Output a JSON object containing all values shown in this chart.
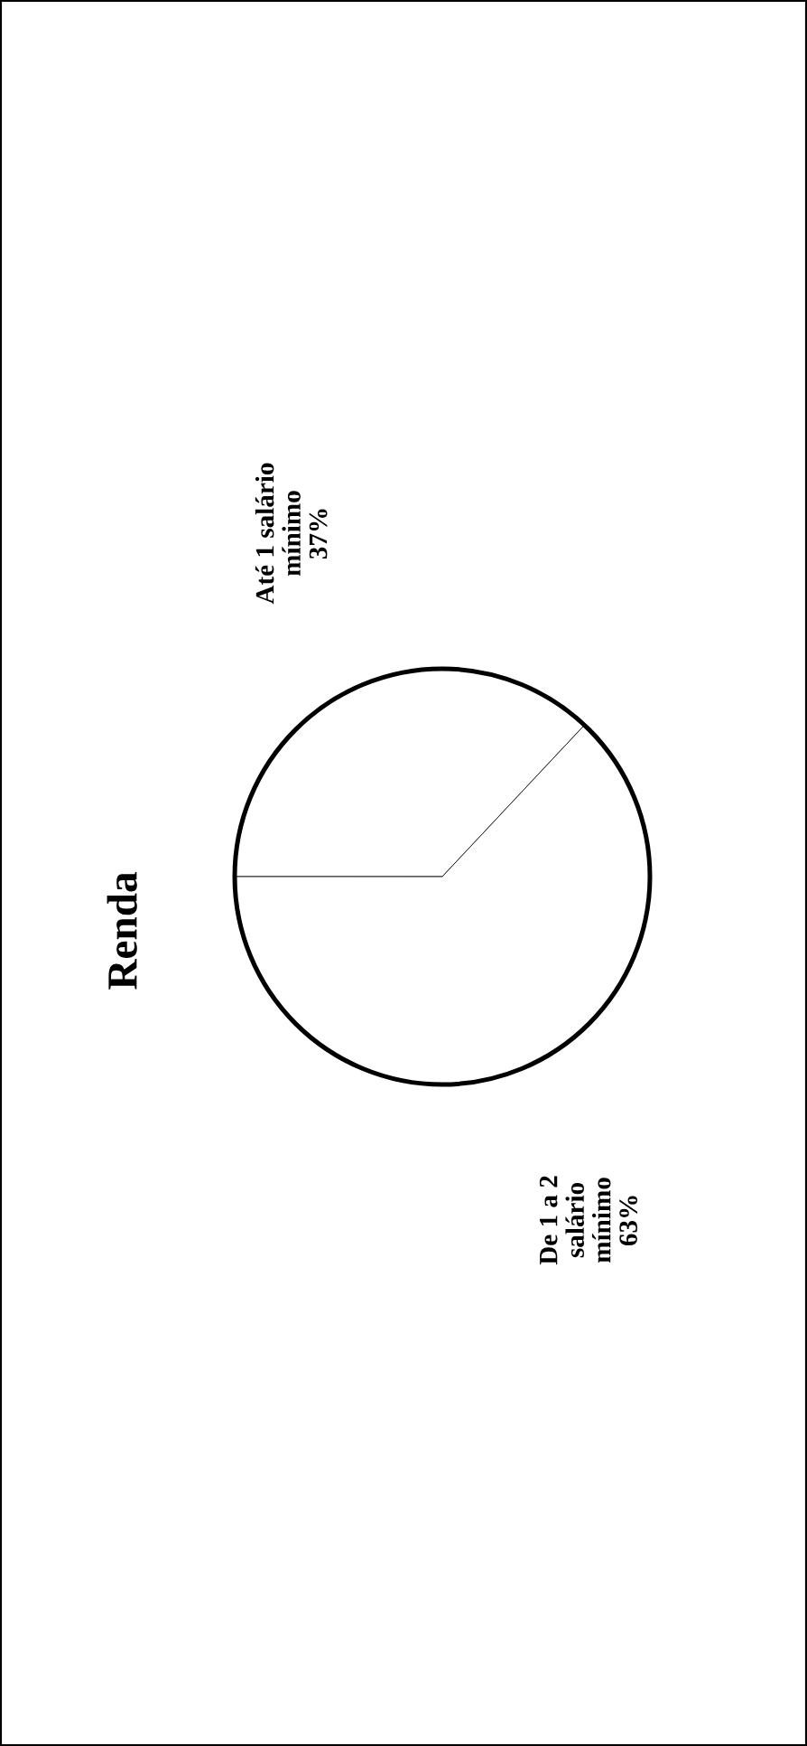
{
  "chart_data": {
    "type": "pie",
    "title": "Renda",
    "categories": [
      "Até 1 salário mínimo",
      "De 1 a 2 salário mínimo"
    ],
    "values": [
      37,
      63
    ],
    "value_labels": [
      "37%",
      "63%"
    ],
    "colors": [
      "#ffffff",
      "#ffffff"
    ]
  }
}
